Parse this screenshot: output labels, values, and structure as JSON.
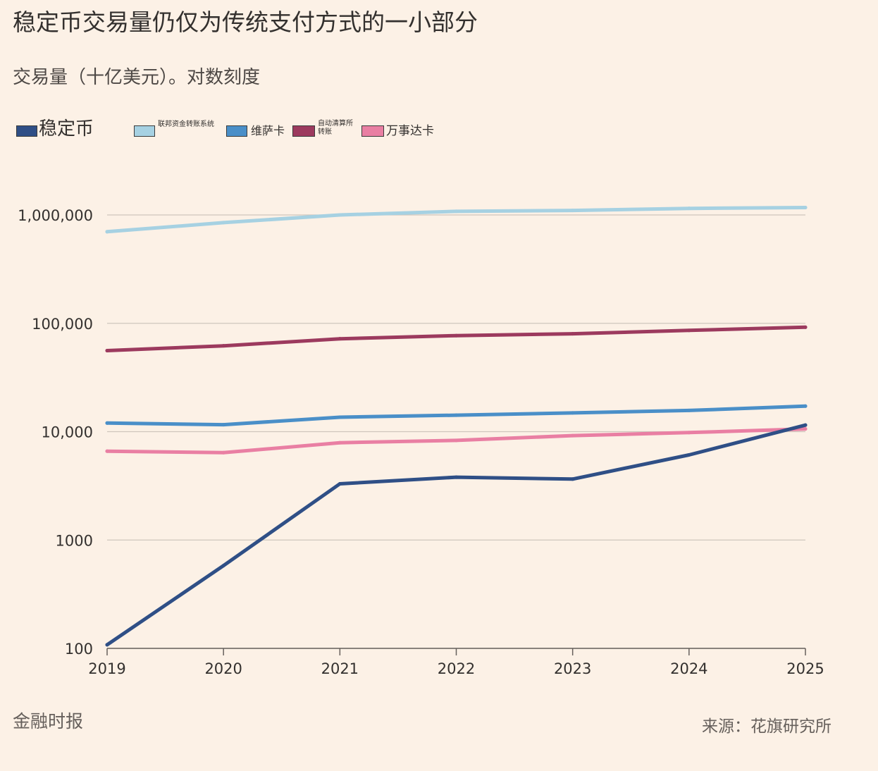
{
  "header": {
    "title": "稳定币交易量仍仅为传统支付方式的一小部分",
    "subtitle": "交易量（十亿美元）。对数刻度"
  },
  "footer": {
    "brand": "金融时报",
    "source": "来源：花旗研究所"
  },
  "chart_data": {
    "type": "line",
    "title": "稳定币交易量仍仅为传统支付方式的一小部分",
    "subtitle": "交易量（十亿美元）。对数刻度",
    "xlabel": "",
    "ylabel": "",
    "yscale": "log",
    "ylim": [
      100,
      4000000
    ],
    "y_ticks": [
      100,
      1000,
      10000,
      100000,
      1000000
    ],
    "y_tick_labels": [
      "100",
      "1000",
      "10,000",
      "100,000",
      "1,000,000"
    ],
    "x": [
      "2019",
      "2020",
      "2021",
      "2022",
      "2023",
      "2024",
      "2025"
    ],
    "grid": true,
    "legend_position": "top-left",
    "series": [
      {
        "name": "稳定币",
        "color": "#2f4f86",
        "values": [
          108,
          580,
          3300,
          3800,
          3650,
          6100,
          11500
        ]
      },
      {
        "name": "联邦资金转账系统",
        "color": "#a6d1e2",
        "values": [
          700000,
          850000,
          1000000,
          1080000,
          1100000,
          1150000,
          1170000
        ]
      },
      {
        "name": "维萨卡",
        "color": "#4a8fc8",
        "values": [
          12000,
          11600,
          13600,
          14200,
          14900,
          15700,
          17200
        ]
      },
      {
        "name": "自动清算所转账",
        "color": "#9c3a5e",
        "values": [
          56000,
          62000,
          72000,
          77000,
          80000,
          86000,
          92000
        ]
      },
      {
        "name": "万事达卡",
        "color": "#e97fa3",
        "values": [
          6600,
          6400,
          7900,
          8300,
          9200,
          9800,
          10600
        ]
      }
    ]
  }
}
